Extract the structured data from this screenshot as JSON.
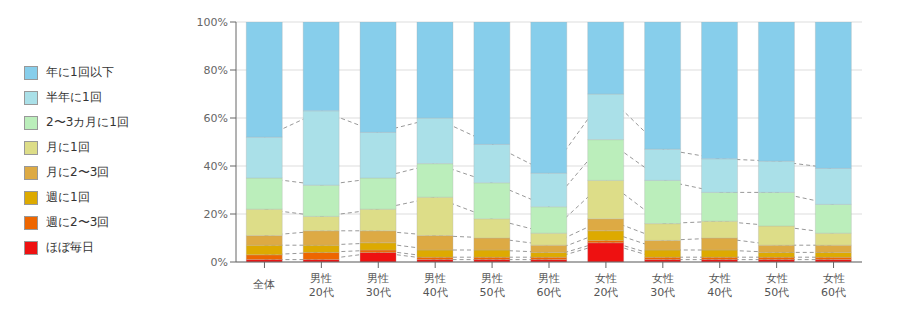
{
  "chart_data": {
    "type": "bar",
    "stacked": true,
    "grid": true,
    "legend": "left",
    "categories": [
      "全体",
      "男性\n20代",
      "男性\n30代",
      "男性\n40代",
      "男性\n50代",
      "男性\n60代",
      "女性\n20代",
      "女性\n30代",
      "女性\n40代",
      "女性\n50代",
      "女性\n60代"
    ],
    "series": [
      {
        "name": "ほぼ毎日",
        "color": "#EE1111",
        "values": [
          1,
          1,
          4,
          1,
          1,
          1,
          8,
          1,
          1,
          1,
          1
        ]
      },
      {
        "name": "週に2〜3回",
        "color": "#EE6600",
        "values": [
          2,
          3,
          1,
          1,
          1,
          1,
          1,
          1,
          1,
          1,
          1
        ]
      },
      {
        "name": "週に1回",
        "color": "#DDAA00",
        "values": [
          4,
          3,
          3,
          3,
          3,
          2,
          4,
          3,
          3,
          2,
          2
        ]
      },
      {
        "name": "月に2〜3回",
        "color": "#DDAA44",
        "values": [
          4,
          6,
          5,
          6,
          5,
          3,
          5,
          4,
          5,
          3,
          3
        ]
      },
      {
        "name": "月に1回",
        "color": "#DDDD88",
        "values": [
          11,
          6,
          9,
          16,
          8,
          5,
          16,
          7,
          7,
          8,
          5
        ]
      },
      {
        "name": "2〜3カ月に1回",
        "color": "#BBEEBB",
        "values": [
          13,
          13,
          13,
          14,
          15,
          11,
          17,
          18,
          12,
          14,
          12
        ]
      },
      {
        "name": "半年に1回",
        "color": "#AAE0E8",
        "values": [
          17,
          31,
          19,
          19,
          16,
          14,
          19,
          13,
          14,
          13,
          15
        ]
      },
      {
        "name": "年に1回以下",
        "color": "#87CEEB",
        "values": [
          48,
          37,
          46,
          40,
          51,
          63,
          30,
          53,
          57,
          58,
          61
        ]
      }
    ],
    "ylim": [
      0,
      100
    ],
    "yticks": [
      {
        "value": 0,
        "label": "0%"
      },
      {
        "value": 20,
        "label": "20%"
      },
      {
        "value": 40,
        "label": "40%"
      },
      {
        "value": 60,
        "label": "60%"
      },
      {
        "value": 80,
        "label": "80%"
      },
      {
        "value": 100,
        "label": "100%"
      }
    ]
  }
}
